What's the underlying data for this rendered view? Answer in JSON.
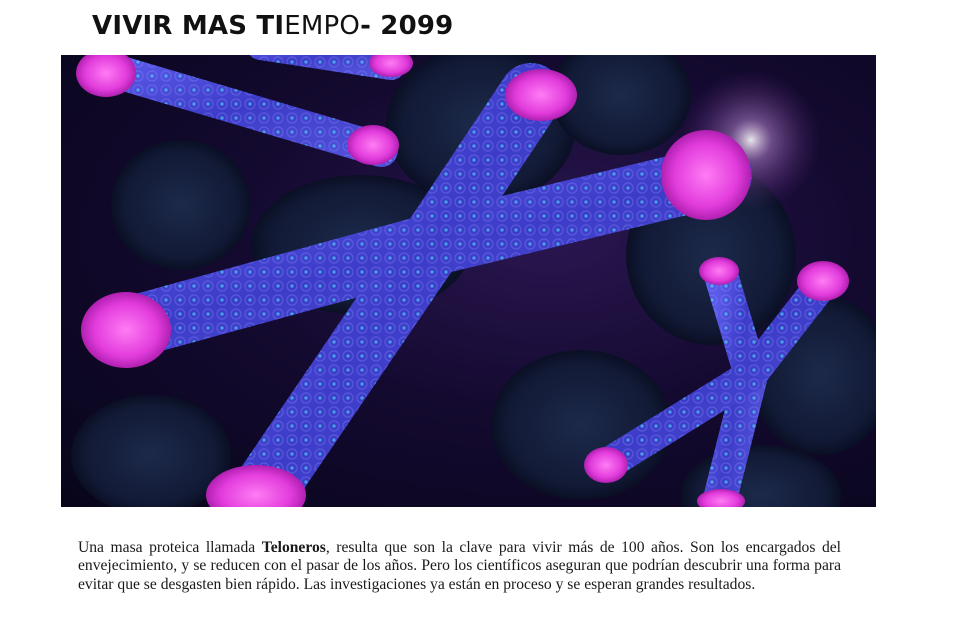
{
  "title": {
    "part1": "VIVIR MAS TI",
    "part2": "EMPO",
    "part3": "- 2099"
  },
  "hero_image": {
    "subject": "chromosomes-with-telomeres",
    "colors": {
      "chromosome": "#4a4ad8",
      "telomere": "#e640e0",
      "background": "#0b0820",
      "glow": "#7a3a9a"
    }
  },
  "paragraph": {
    "before": "Una masa proteica llamada ",
    "bold": "Teloneros",
    "after": ", resulta que son la clave para vivir más de 100 años. Son los encargados del envejecimiento, y se reducen con el pasar de los años. Pero los científicos aseguran que podrían descubrir una forma para evitar que se desgasten bien rápido. Las investigaciones ya están en proceso y se esperan grandes resultados."
  }
}
